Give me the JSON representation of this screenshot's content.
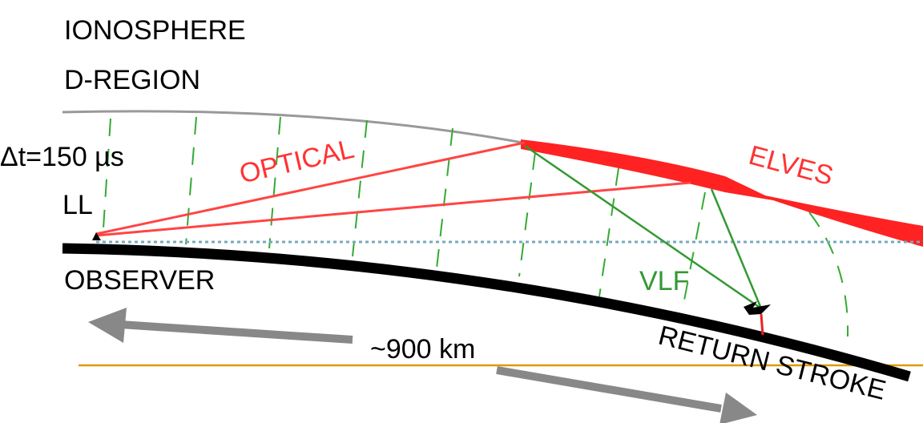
{
  "labels": {
    "ionosphere": "IONOSPHERE",
    "d_region": "D-REGION",
    "delta_t": "Δt=150 µs",
    "ll": "LL",
    "optical": "OPTICAL",
    "elves": "ELVES",
    "observer": "OBSERVER",
    "vlf": "VLF",
    "distance": "~900 km",
    "return_stroke": "RETURN STROKE"
  }
}
